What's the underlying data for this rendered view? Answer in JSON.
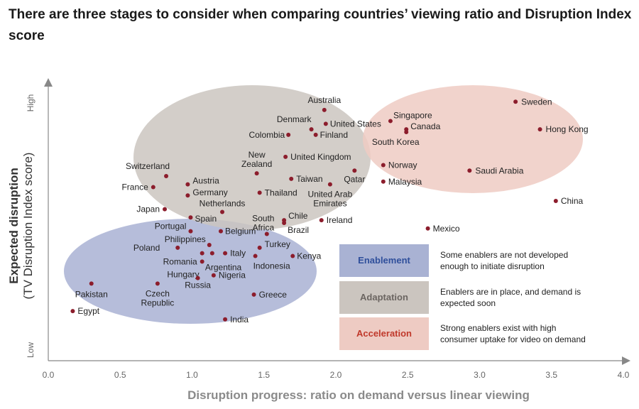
{
  "title": "There are three stages to consider when comparing countries’ viewing ratio and Disruption Index score",
  "chart_data": {
    "type": "scatter",
    "title": "There are three stages to consider when comparing countries’ viewing ratio and Disruption Index score",
    "xlabel": "Disruption progress: ratio on demand versus linear viewing",
    "ylabel_main": "Expected disruption",
    "ylabel_sub": "(TV Disruption Index score)",
    "y_high_label": "High",
    "y_low_label": "Low",
    "xlim": [
      0.0,
      4.0
    ],
    "x_ticks": [
      "0.0",
      "0.5",
      "1.0",
      "1.5",
      "2.0",
      "2.5",
      "3.0",
      "3.5",
      "4.0"
    ],
    "ylim": [
      0,
      100
    ],
    "grid": false,
    "point_color": "#8c1d2c",
    "points": [
      {
        "name": "Australia",
        "x": 1.92,
        "y": 91
      },
      {
        "name": "Denmark",
        "x": 1.83,
        "y": 84
      },
      {
        "name": "United States",
        "x": 1.93,
        "y": 86
      },
      {
        "name": "Colombia",
        "x": 1.67,
        "y": 82
      },
      {
        "name": "Finland",
        "x": 1.86,
        "y": 82
      },
      {
        "name": "Switzerland",
        "x": 0.82,
        "y": 67
      },
      {
        "name": "France",
        "x": 0.73,
        "y": 63
      },
      {
        "name": "Austria",
        "x": 0.97,
        "y": 64
      },
      {
        "name": "Germany",
        "x": 0.97,
        "y": 60
      },
      {
        "name": "Japan",
        "x": 0.81,
        "y": 55
      },
      {
        "name": "Netherlands",
        "x": 1.21,
        "y": 54
      },
      {
        "name": "Spain",
        "x": 0.99,
        "y": 52
      },
      {
        "name": "Portugal",
        "x": 0.99,
        "y": 47
      },
      {
        "name": "Belgium",
        "x": 1.2,
        "y": 47
      },
      {
        "name": "New Zealand",
        "x": 1.45,
        "y": 68
      },
      {
        "name": "United Kingdom",
        "x": 1.65,
        "y": 74
      },
      {
        "name": "Taiwan",
        "x": 1.69,
        "y": 66
      },
      {
        "name": "Qatar",
        "x": 2.13,
        "y": 69
      },
      {
        "name": "Thailand",
        "x": 1.47,
        "y": 61
      },
      {
        "name": "United Arab Emirates",
        "x": 1.96,
        "y": 64
      },
      {
        "name": "South Africa",
        "x": 1.52,
        "y": 46
      },
      {
        "name": "Chile",
        "x": 1.64,
        "y": 51
      },
      {
        "name": "Brazil",
        "x": 1.64,
        "y": 50
      },
      {
        "name": "Ireland",
        "x": 1.9,
        "y": 51
      },
      {
        "name": "Singapore",
        "x": 2.38,
        "y": 87
      },
      {
        "name": "Canada",
        "x": 2.49,
        "y": 84
      },
      {
        "name": "South Korea",
        "x": 2.49,
        "y": 83
      },
      {
        "name": "Norway",
        "x": 2.33,
        "y": 71
      },
      {
        "name": "Malaysia",
        "x": 2.33,
        "y": 65
      },
      {
        "name": "Saudi Arabia",
        "x": 2.93,
        "y": 69
      },
      {
        "name": "Sweden",
        "x": 3.25,
        "y": 94
      },
      {
        "name": "Hong Kong",
        "x": 3.42,
        "y": 84
      },
      {
        "name": "China",
        "x": 3.53,
        "y": 58
      },
      {
        "name": "Mexico",
        "x": 2.64,
        "y": 48
      },
      {
        "name": "Philippines",
        "x": 1.12,
        "y": 42
      },
      {
        "name": "Poland",
        "x": 0.9,
        "y": 41
      },
      {
        "name": "Romania",
        "x": 1.07,
        "y": 39
      },
      {
        "name": "Italy",
        "x": 1.23,
        "y": 39
      },
      {
        "name": "Hungary",
        "x": 1.07,
        "y": 36
      },
      {
        "name": "Argentina",
        "x": 1.14,
        "y": 39
      },
      {
        "name": "Turkey",
        "x": 1.47,
        "y": 41
      },
      {
        "name": "Kenya",
        "x": 1.7,
        "y": 38
      },
      {
        "name": "Indonesia",
        "x": 1.44,
        "y": 38
      },
      {
        "name": "Nigeria",
        "x": 1.15,
        "y": 31
      },
      {
        "name": "Russia",
        "x": 1.04,
        "y": 30
      },
      {
        "name": "Czech Republic",
        "x": 0.76,
        "y": 28
      },
      {
        "name": "Pakistan",
        "x": 0.3,
        "y": 28
      },
      {
        "name": "Greece",
        "x": 1.43,
        "y": 24
      },
      {
        "name": "Egypt",
        "x": 0.17,
        "y": 18
      },
      {
        "name": "India",
        "x": 1.23,
        "y": 15
      }
    ],
    "stages": [
      {
        "name": "Enablement",
        "description": "Some enablers are not developed enough to initiate disruption",
        "fill": "#a9b2d3",
        "text_color": "#2f4f9b"
      },
      {
        "name": "Adaptation",
        "description": "Enablers are in place, and demand is expected soon",
        "fill": "#cbc5bf",
        "text_color": "#6b6561"
      },
      {
        "name": "Acceleration",
        "description": "Strong enablers exist with high consumer uptake for video on demand",
        "fill": "#eecbc3",
        "text_color": "#c0392b"
      }
    ]
  }
}
